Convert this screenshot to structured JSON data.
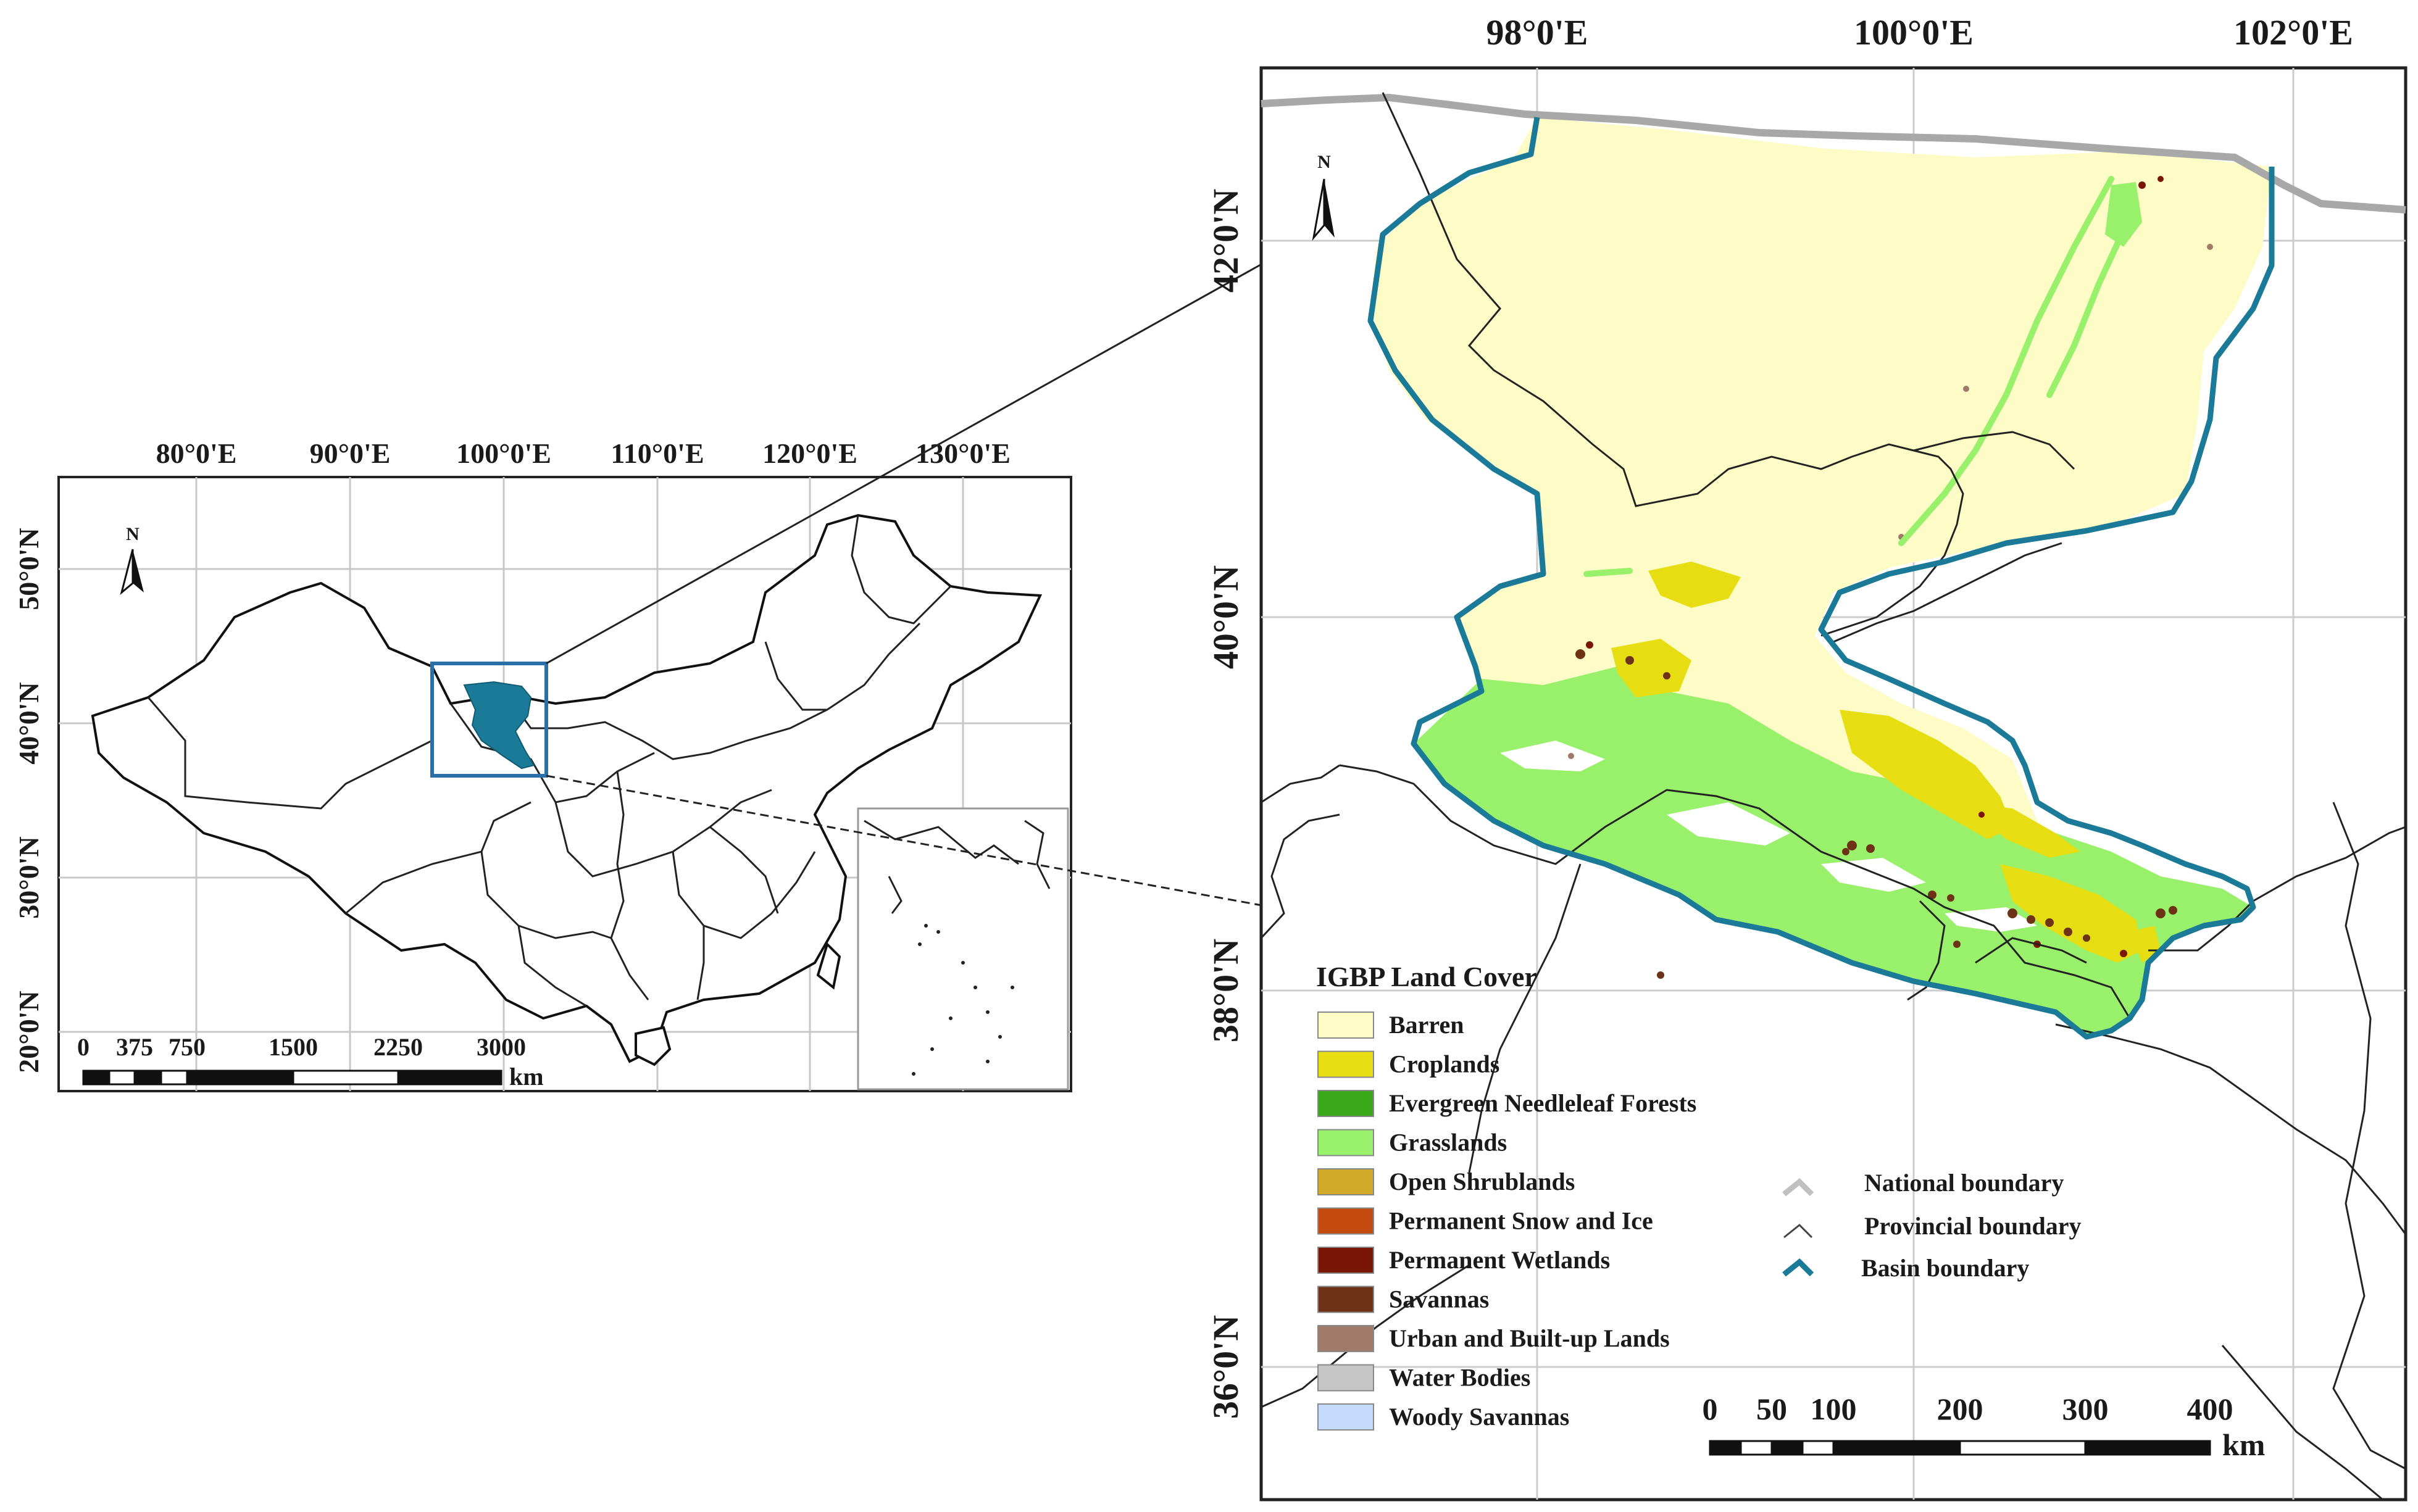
{
  "inset_map": {
    "lon_labels": [
      "80°0'E",
      "90°0'E",
      "100°0'E",
      "110°0'E",
      "120°0'E",
      "130°0'E"
    ],
    "lat_labels": [
      "50°0'N",
      "40°0'N",
      "30°0'N",
      "20°0'N"
    ],
    "north_label": "N",
    "scale_labels": [
      "0",
      "375",
      "750",
      "1500",
      "2250",
      "3000"
    ],
    "scale_unit": "km",
    "colors": {
      "basin": "#1b7a97",
      "frame": "#2a6fa8"
    }
  },
  "main_map": {
    "lon_labels": [
      "98°0'E",
      "100°0'E",
      "102°0'E"
    ],
    "lat_labels": [
      "42°0'N",
      "40°0'N",
      "38°0'N",
      "36°0'N"
    ],
    "north_label": "N",
    "scale_labels": [
      "0",
      "50",
      "100",
      "200",
      "300",
      "400"
    ],
    "scale_unit": "km",
    "legend": {
      "title": "IGBP Land Cover",
      "items": [
        {
          "label": "Barren",
          "color": "#fdfcc6"
        },
        {
          "label": "Croplands",
          "color": "#e6de12"
        },
        {
          "label": "Evergreen Needleleaf Forests",
          "color": "#3aa91a"
        },
        {
          "label": "Grasslands",
          "color": "#99f06a"
        },
        {
          "label": "Open Shrublands",
          "color": "#d1a928"
        },
        {
          "label": "Permanent Snow and Ice",
          "color": "#c44b10"
        },
        {
          "label": "Permanent Wetlands",
          "color": "#7a1606"
        },
        {
          "label": "Savannas",
          "color": "#6e3316"
        },
        {
          "label": "Urban and Built-up Lands",
          "color": "#a07a69"
        },
        {
          "label": "Water Bodies",
          "color": "#c6c6c6"
        },
        {
          "label": "Woody Savannas",
          "color": "#c6dafc"
        }
      ]
    },
    "boundary_legend": [
      {
        "label": "National boundary",
        "color": "#c0c0c0"
      },
      {
        "label": "Provincial boundary",
        "color": "#444444"
      },
      {
        "label": "Basin boundary",
        "color": "#1b7a97"
      }
    ]
  }
}
